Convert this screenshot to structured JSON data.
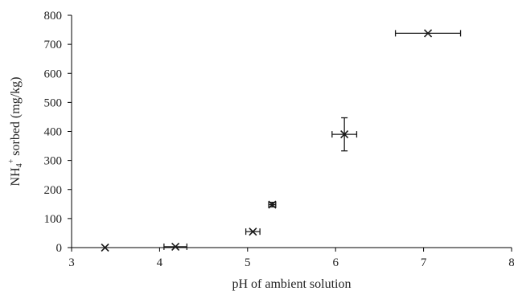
{
  "chart_data": {
    "type": "scatter",
    "xlabel": "pH of ambient solution",
    "ylabel": {
      "prefix": "NH",
      "subscript": "4",
      "superscript": "+",
      "suffix": " sorbed (mg/kg)"
    },
    "xlim": [
      3,
      8
    ],
    "ylim": [
      0,
      800
    ],
    "xticks": [
      "3",
      "4",
      "5",
      "6",
      "7",
      "8"
    ],
    "yticks": [
      "0",
      "100",
      "200",
      "300",
      "400",
      "500",
      "600",
      "700",
      "800"
    ],
    "grid": false,
    "legend": "none",
    "marker": "x",
    "points": [
      {
        "x": 3.38,
        "y": 0,
        "xerr": 0,
        "yerr": 0
      },
      {
        "x": 4.18,
        "y": 3,
        "xerr": 0.13,
        "yerr": 0
      },
      {
        "x": 5.06,
        "y": 55,
        "xerr": 0.08,
        "yerr": 0
      },
      {
        "x": 5.28,
        "y": 148,
        "xerr": 0.04,
        "yerr": 8
      },
      {
        "x": 6.1,
        "y": 390,
        "xerr": 0.14,
        "yerr": 57
      },
      {
        "x": 7.05,
        "y": 738,
        "xerr": 0.37,
        "yerr": 0
      }
    ]
  }
}
